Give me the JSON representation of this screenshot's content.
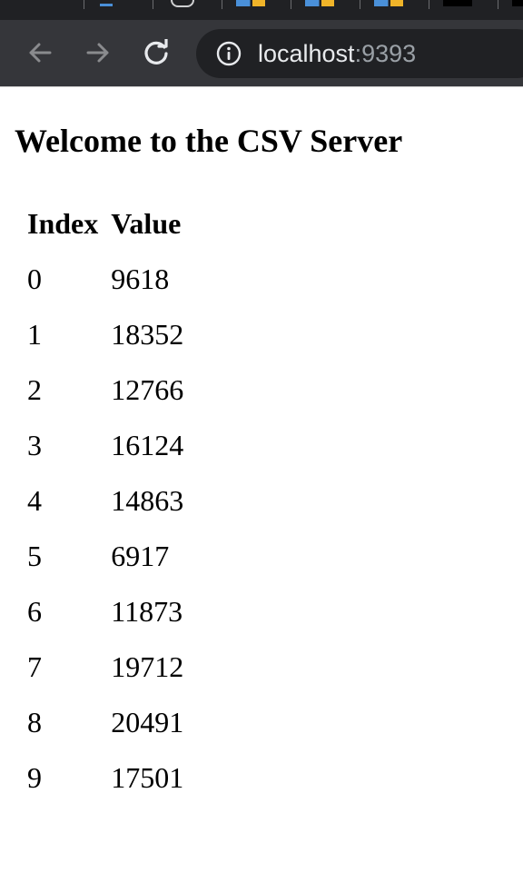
{
  "browser": {
    "back_label": "Back",
    "forward_label": "Forward",
    "reload_label": "Reload",
    "url": {
      "host": "localhost",
      "port": ":9393"
    }
  },
  "page": {
    "title": "Welcome to the CSV Server",
    "table": {
      "headers": {
        "index": "Index",
        "value": "Value"
      },
      "rows": [
        {
          "index": "0",
          "value": "9618"
        },
        {
          "index": "1",
          "value": "18352"
        },
        {
          "index": "2",
          "value": "12766"
        },
        {
          "index": "3",
          "value": "16124"
        },
        {
          "index": "4",
          "value": "14863"
        },
        {
          "index": "5",
          "value": "6917"
        },
        {
          "index": "6",
          "value": "11873"
        },
        {
          "index": "7",
          "value": "19712"
        },
        {
          "index": "8",
          "value": "20491"
        },
        {
          "index": "9",
          "value": "17501"
        }
      ]
    }
  }
}
